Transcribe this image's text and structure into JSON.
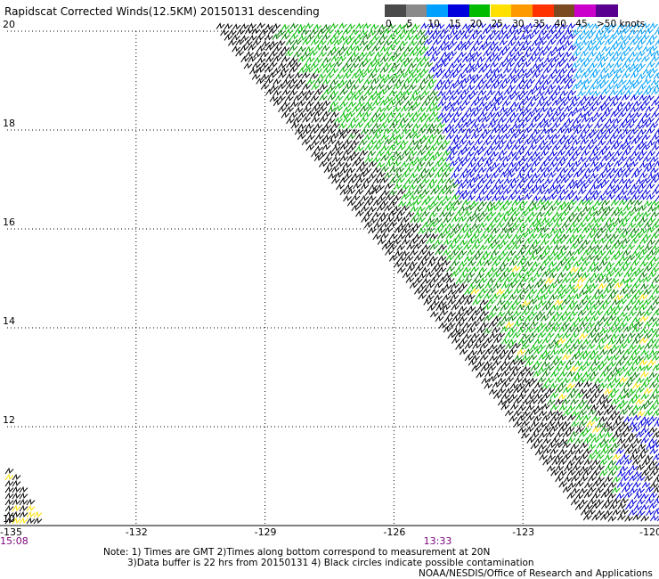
{
  "title": "Rapidscat Corrected Winds(12.5KM) 20150131 descending",
  "legend": {
    "unit": "knots",
    "bins": [
      {
        "label": "0",
        "color": "#4a4a4a"
      },
      {
        "label": "5",
        "color": "#8a8a8a"
      },
      {
        "label": "10",
        "color": "#00a0ff"
      },
      {
        "label": "15",
        "color": "#0000dd"
      },
      {
        "label": "20",
        "color": "#00bb00"
      },
      {
        "label": "25",
        "color": "#ffe000"
      },
      {
        "label": "30",
        "color": "#ff9900"
      },
      {
        "label": "35",
        "color": "#ff3300"
      },
      {
        "label": "40",
        "color": "#7a4a20"
      },
      {
        "label": "45",
        "color": "#cc00cc"
      },
      {
        "label": ">50 knots",
        "color": "#5a0090"
      }
    ]
  },
  "axes": {
    "lon_ticks": [
      "-135",
      "-132",
      "-129",
      "-126",
      "-123",
      "-120"
    ],
    "lat_ticks": [
      "20",
      "18",
      "16",
      "14",
      "12",
      "10"
    ],
    "lon_range": [
      -135,
      -120
    ],
    "lat_range": [
      10,
      20
    ]
  },
  "times": [
    {
      "label": "15:08",
      "lon": -135
    },
    {
      "label": "13:33",
      "lon": -125
    }
  ],
  "notes": [
    "Note: 1) Times are GMT 2)Times along bottom correspond to measurement at 20N",
    "3)Data buffer is 22 hrs from 20150131 4) Black circles indicate possible contamination"
  ],
  "credit": "NOAA/NESDIS/Office of Research and Applications",
  "wind_colors": {
    "black": "#000000",
    "green": "#00bb00",
    "dark_green": "#007a00",
    "blue": "#0000dd",
    "light_blue": "#00a0ff",
    "yellow": "#ffe000"
  }
}
